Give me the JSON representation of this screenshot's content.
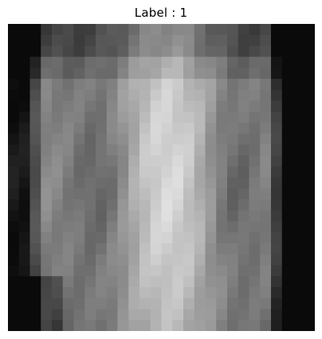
{
  "figure": {
    "title": "Label : 1"
  },
  "image": {
    "kind": "grayscale chest x-ray thumbnail",
    "grid": 28,
    "colors": {
      "dark": "#121212",
      "mid": "#6f6f6f",
      "light": "#c9c9c9"
    }
  }
}
